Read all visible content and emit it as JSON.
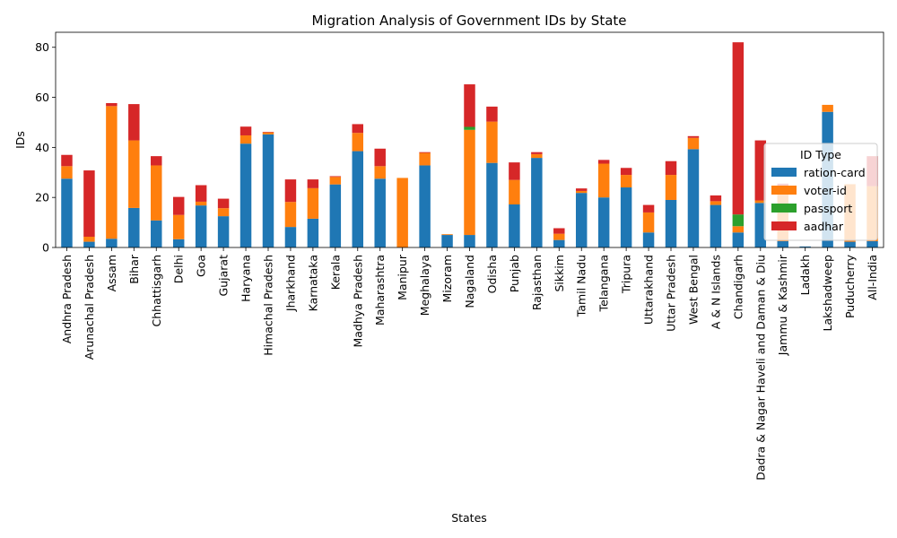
{
  "chart_data": {
    "type": "bar",
    "stacked": true,
    "title": "Migration Analysis of Government IDs by State",
    "xlabel": "States",
    "ylabel": "IDs",
    "ylim": [
      0,
      86
    ],
    "yticks": [
      0,
      20,
      40,
      60,
      80
    ],
    "grid": false,
    "legend": {
      "title": "ID Type",
      "placement": "right"
    },
    "categories": [
      "Andhra Pradesh",
      "Arunachal Pradesh",
      "Assam",
      "Bihar",
      "Chhattisgarh",
      "Delhi",
      "Goa",
      "Gujarat",
      "Haryana",
      "Himachal Pradesh",
      "Jharkhand",
      "Karnataka",
      "Kerala",
      "Madhya Pradesh",
      "Maharashtra",
      "Manipur",
      "Meghalaya",
      "Mizoram",
      "Nagaland",
      "Odisha",
      "Punjab",
      "Rajasthan",
      "Sikkim",
      "Tamil Nadu",
      "Telangana",
      "Tripura",
      "Uttarakhand",
      "Uttar Pradesh",
      "West Bengal",
      "A & N Islands",
      "Chandigarh",
      "Dadra & Nagar Haveli and Daman & Diu",
      "Jammu & Kashmir",
      "Ladakh",
      "Lakshadweep",
      "Puducherry",
      "All-India"
    ],
    "series": [
      {
        "name": "ration-card",
        "color": "#1f77b4",
        "values": [
          27.5,
          2.3,
          3.5,
          15.8,
          10.8,
          3.3,
          16.8,
          12.5,
          41.5,
          45.2,
          8.2,
          11.5,
          25.2,
          38.5,
          27.5,
          0,
          32.8,
          5.0,
          5.0,
          33.8,
          17.2,
          35.8,
          3.0,
          21.8,
          20.0,
          24.0,
          6.0,
          19.0,
          39.3,
          17.0,
          6.0,
          17.8,
          2.5,
          0.4,
          54.2,
          2.3,
          2.5
        ]
      },
      {
        "name": "voter-id",
        "color": "#ff7f0e",
        "values": [
          5.0,
          2.0,
          53.0,
          27.0,
          22.0,
          9.7,
          1.5,
          3.2,
          3.3,
          0.8,
          10.0,
          12.2,
          3.0,
          7.3,
          5.0,
          27.8,
          5.0,
          0.3,
          42.0,
          16.5,
          9.8,
          1.5,
          2.5,
          0.8,
          13.5,
          5.0,
          8.0,
          10.0,
          4.5,
          1.5,
          2.5,
          1.0,
          22.0,
          0,
          2.8,
          23.0,
          22.0
        ]
      },
      {
        "name": "passport",
        "color": "#2ca02c",
        "values": [
          0,
          0,
          0,
          0,
          0,
          0,
          0,
          0,
          0,
          0,
          0,
          0,
          0,
          0,
          0,
          0,
          0,
          0,
          1.2,
          0,
          0,
          0,
          0,
          0,
          0,
          0,
          0,
          0,
          0,
          0,
          4.7,
          0,
          0,
          0,
          0,
          0,
          0
        ]
      },
      {
        "name": "aadhar",
        "color": "#d62728",
        "values": [
          4.5,
          26.5,
          1.2,
          14.5,
          3.7,
          7.2,
          6.6,
          3.8,
          3.5,
          0.2,
          9.0,
          3.5,
          0.3,
          3.5,
          7.0,
          0,
          0.3,
          0,
          17.0,
          6.0,
          7.0,
          0.8,
          2.2,
          1.0,
          1.5,
          2.8,
          3.0,
          5.5,
          0.7,
          2.3,
          68.8,
          24.0,
          1.0,
          0,
          0,
          0,
          12.0
        ]
      }
    ]
  }
}
